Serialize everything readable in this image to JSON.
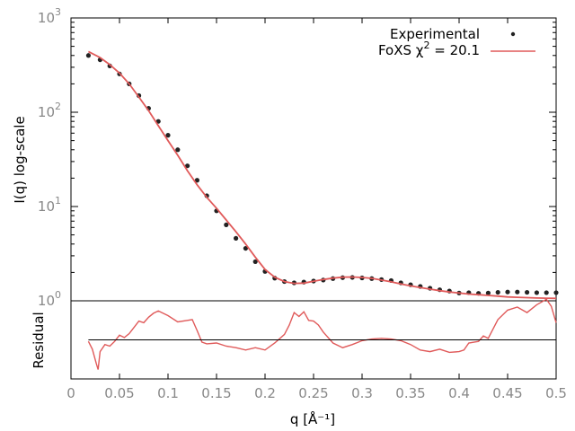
{
  "chart_data": [
    {
      "type": "scatter",
      "panel": "main",
      "ylabel": "I(q) log-scale",
      "xlabel": "q [Å⁻¹]",
      "xlim": [
        0,
        0.5
      ],
      "ylim": [
        1,
        1000
      ],
      "yscale": "log",
      "y_ticks": [
        {
          "base": "10",
          "exp": "0"
        },
        {
          "base": "10",
          "exp": "1"
        },
        {
          "base": "10",
          "exp": "2"
        },
        {
          "base": "10",
          "exp": "3"
        }
      ],
      "x_ticks": [
        "0",
        "0.05",
        "0.1",
        "0.15",
        "0.2",
        "0.25",
        "0.3",
        "0.35",
        "0.4",
        "0.45",
        "0.5"
      ],
      "legend_placement": "top-right",
      "series": [
        {
          "name": "Experimental",
          "style": "points",
          "color": "#222222",
          "x": [
            0.018,
            0.03,
            0.04,
            0.05,
            0.06,
            0.07,
            0.08,
            0.09,
            0.1,
            0.11,
            0.12,
            0.13,
            0.14,
            0.15,
            0.16,
            0.17,
            0.18,
            0.19,
            0.2,
            0.21,
            0.22,
            0.23,
            0.24,
            0.25,
            0.26,
            0.27,
            0.28,
            0.29,
            0.3,
            0.31,
            0.32,
            0.33,
            0.34,
            0.35,
            0.36,
            0.37,
            0.38,
            0.39,
            0.4,
            0.41,
            0.42,
            0.43,
            0.44,
            0.45,
            0.46,
            0.47,
            0.48,
            0.49,
            0.5
          ],
          "y": [
            400,
            360,
            310,
            255,
            200,
            150,
            110,
            80,
            57,
            40,
            27,
            19,
            13,
            9.0,
            6.4,
            4.6,
            3.6,
            2.6,
            2.05,
            1.74,
            1.6,
            1.55,
            1.58,
            1.62,
            1.66,
            1.72,
            1.76,
            1.77,
            1.75,
            1.72,
            1.68,
            1.64,
            1.55,
            1.48,
            1.42,
            1.36,
            1.31,
            1.27,
            1.21,
            1.22,
            1.2,
            1.21,
            1.23,
            1.24,
            1.24,
            1.23,
            1.22,
            1.22,
            1.22
          ]
        },
        {
          "name": "FoXS χ² = 20.1",
          "name_prefix": "FoXS χ",
          "name_sup": "2",
          "name_suffix": " = 20.1",
          "style": "line",
          "color": "#e05a5a",
          "x": [
            0.018,
            0.03,
            0.04,
            0.05,
            0.06,
            0.07,
            0.08,
            0.09,
            0.1,
            0.11,
            0.12,
            0.13,
            0.14,
            0.15,
            0.16,
            0.17,
            0.18,
            0.19,
            0.2,
            0.21,
            0.22,
            0.23,
            0.24,
            0.25,
            0.26,
            0.27,
            0.28,
            0.29,
            0.3,
            0.31,
            0.32,
            0.33,
            0.34,
            0.35,
            0.36,
            0.37,
            0.38,
            0.39,
            0.4,
            0.41,
            0.42,
            0.43,
            0.44,
            0.45,
            0.46,
            0.47,
            0.48,
            0.49,
            0.5
          ],
          "y": [
            440,
            380,
            320,
            260,
            200,
            145,
            104,
            72,
            50,
            35,
            24,
            17,
            12.5,
            9.6,
            7.2,
            5.4,
            4.0,
            2.9,
            2.15,
            1.78,
            1.6,
            1.53,
            1.54,
            1.61,
            1.68,
            1.74,
            1.78,
            1.79,
            1.77,
            1.73,
            1.66,
            1.59,
            1.51,
            1.44,
            1.38,
            1.33,
            1.28,
            1.24,
            1.21,
            1.18,
            1.16,
            1.14,
            1.12,
            1.1,
            1.09,
            1.08,
            1.07,
            1.065,
            1.06
          ]
        }
      ]
    },
    {
      "type": "line",
      "panel": "residual",
      "ylabel": "Residual",
      "xlim": [
        0,
        0.5
      ],
      "ylim": [
        -5,
        5
      ],
      "series": [
        {
          "color": "#e05a5a",
          "x": [
            0.018,
            0.022,
            0.026,
            0.028,
            0.03,
            0.035,
            0.04,
            0.045,
            0.05,
            0.055,
            0.06,
            0.065,
            0.07,
            0.075,
            0.08,
            0.085,
            0.09,
            0.1,
            0.11,
            0.12,
            0.125,
            0.13,
            0.135,
            0.14,
            0.15,
            0.16,
            0.17,
            0.18,
            0.19,
            0.2,
            0.21,
            0.22,
            0.225,
            0.23,
            0.235,
            0.24,
            0.245,
            0.25,
            0.255,
            0.26,
            0.27,
            0.28,
            0.29,
            0.3,
            0.31,
            0.32,
            0.33,
            0.34,
            0.35,
            0.36,
            0.37,
            0.38,
            0.39,
            0.4,
            0.405,
            0.41,
            0.42,
            0.425,
            0.43,
            0.44,
            0.45,
            0.46,
            0.47,
            0.48,
            0.49,
            0.495,
            0.5
          ],
          "y": [
            -0.2,
            -1.2,
            -3.0,
            -3.8,
            -1.5,
            -0.6,
            -0.8,
            -0.2,
            0.6,
            0.3,
            0.8,
            1.6,
            2.4,
            2.2,
            2.9,
            3.4,
            3.7,
            3.1,
            2.3,
            2.5,
            2.6,
            1.2,
            -0.3,
            -0.5,
            -0.4,
            -0.8,
            -1.0,
            -1.3,
            -1.0,
            -1.3,
            -0.4,
            0.7,
            1.9,
            3.5,
            3.0,
            3.6,
            2.5,
            2.4,
            1.9,
            1.0,
            -0.4,
            -1.0,
            -0.6,
            -0.1,
            0.1,
            0.2,
            0.1,
            -0.1,
            -0.6,
            -1.3,
            -1.5,
            -1.2,
            -1.6,
            -1.5,
            -1.3,
            -0.4,
            -0.2,
            0.5,
            0.2,
            2.6,
            3.8,
            4.2,
            3.5,
            4.5,
            5.2,
            4.3,
            2.2
          ]
        },
        {
          "role": "zero-line",
          "color": "#000000",
          "x": [
            0.018,
            0.5
          ],
          "y": [
            0,
            0
          ]
        }
      ]
    }
  ]
}
